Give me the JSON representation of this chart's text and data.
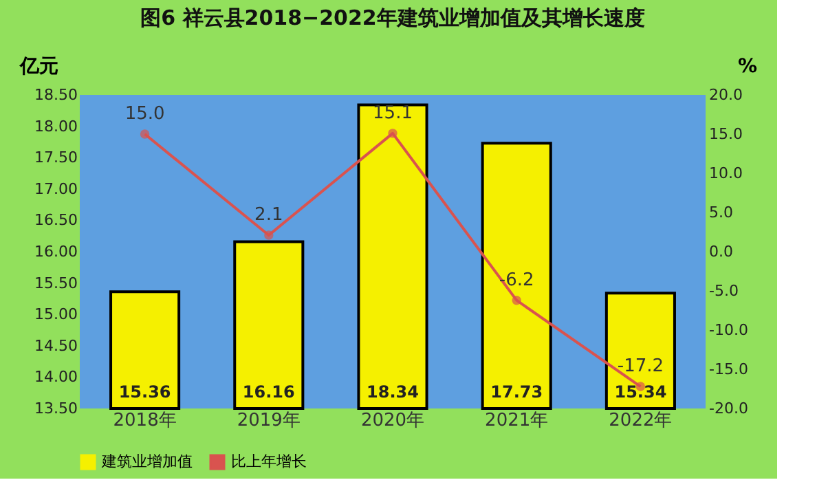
{
  "chart_data": {
    "type": "bar",
    "title": "图6  祥云县2018−2022年建筑业增加值及其增长速度",
    "ylabel": "亿元",
    "y2label": "%",
    "categories": [
      "2018年",
      "2019年",
      "2020年",
      "2021年",
      "2022年"
    ],
    "series": [
      {
        "name": "建筑业增加值",
        "color": "#f5f000",
        "values": [
          15.36,
          16.16,
          18.34,
          17.73,
          15.34
        ],
        "value_labels": [
          "15.36",
          "16.16",
          "18.34",
          "17.73",
          "15.34"
        ]
      },
      {
        "name": "比上年增长",
        "type": "line",
        "axis": "y2",
        "color": "#d9534f",
        "values": [
          15.0,
          2.1,
          15.1,
          -6.2,
          -17.2
        ],
        "value_labels": [
          "15.0",
          "2.1",
          "15.1",
          "-6.2",
          "-17.2"
        ]
      }
    ],
    "ylim": [
      13.5,
      18.5
    ],
    "yticks": [
      {
        "value": 13.5,
        "label": "13.50"
      },
      {
        "value": 14,
        "label": "14.00"
      },
      {
        "value": 14.5,
        "label": "14.50"
      },
      {
        "value": 15,
        "label": "15.00"
      },
      {
        "value": 15.5,
        "label": "15.50"
      },
      {
        "value": 16,
        "label": "16.00"
      },
      {
        "value": 16.5,
        "label": "16.50"
      },
      {
        "value": 17,
        "label": "17.00"
      },
      {
        "value": 17.5,
        "label": "17.50"
      },
      {
        "value": 18,
        "label": "18.00"
      },
      {
        "value": 18.5,
        "label": "18.50"
      }
    ],
    "y2lim": [
      -20,
      20
    ],
    "y2ticks": [
      {
        "value": -20,
        "label": "-20.0"
      },
      {
        "value": -15,
        "label": "-15.0"
      },
      {
        "value": -10,
        "label": "-10.0"
      },
      {
        "value": -5,
        "label": "-5.0"
      },
      {
        "value": 0,
        "label": "0.0"
      },
      {
        "value": 5,
        "label": "5.0"
      },
      {
        "value": 10,
        "label": "10.0"
      },
      {
        "value": 15,
        "label": "15.0"
      },
      {
        "value": 20,
        "label": "20.0"
      }
    ],
    "legend": "bottom",
    "marker": "circle"
  }
}
